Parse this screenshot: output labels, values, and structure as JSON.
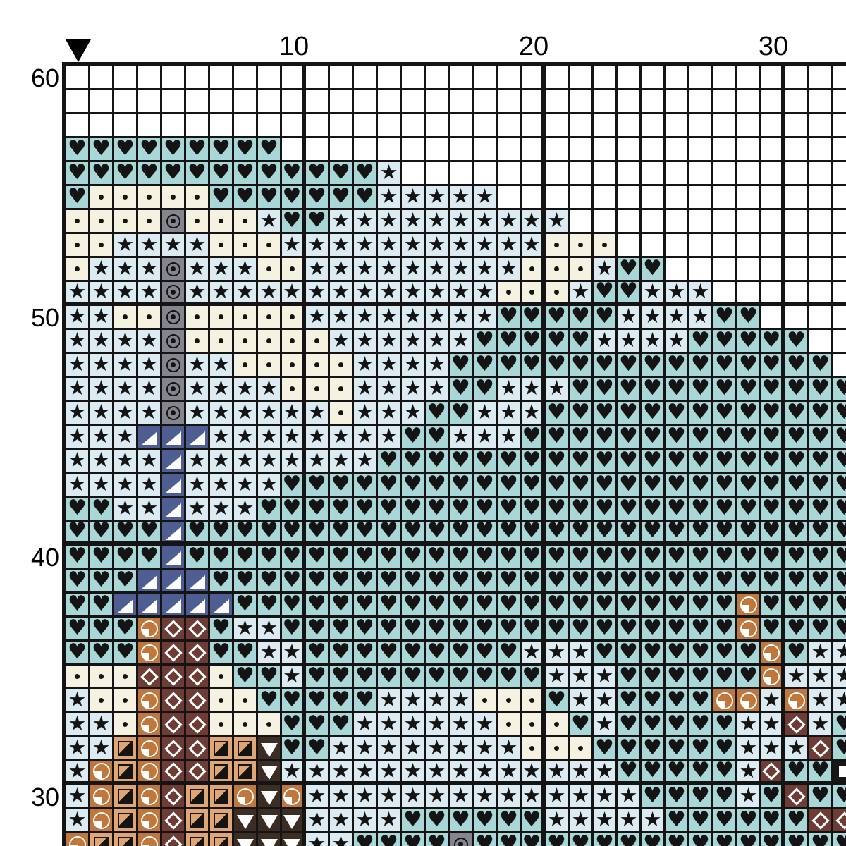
{
  "chart": {
    "type": "cross-stitch-pattern-grid",
    "marker": {
      "name": "center-marker",
      "shape": "down-triangle",
      "color": "#000000",
      "column": 1
    },
    "axis_top": [
      {
        "col": 10,
        "label": "10"
      },
      {
        "col": 20,
        "label": "20"
      },
      {
        "col": 30,
        "label": "30"
      }
    ],
    "axis_left": [
      {
        "row": 60,
        "label": "60"
      },
      {
        "row": 50,
        "label": "50"
      },
      {
        "row": 40,
        "label": "40"
      },
      {
        "row": 30,
        "label": "30"
      }
    ],
    "grid": {
      "start_row_number": 60,
      "visible_cols": 33,
      "visible_rows": 33,
      "bold_line_every": 10,
      "line_color": "#141414",
      "palette": {
        "w": {
          "name": "empty",
          "bg": "#ffffff",
          "symbol": "none"
        },
        "h": {
          "name": "teal-heart",
          "bg": "#a9d6d6",
          "symbol": "black-heart",
          "glyph": "♥"
        },
        "s": {
          "name": "pale-blue-star",
          "bg": "#dcebf1",
          "symbol": "black-star",
          "glyph": "★"
        },
        "d": {
          "name": "cream-dot",
          "bg": "#f6f2e1",
          "symbol": "black-dot"
        },
        "g": {
          "name": "gray-circled-dot",
          "bg": "#85858f",
          "symbol": "black-circled-dot"
        },
        "n": {
          "name": "navy-corner-triangle",
          "bg": "#4e5e92",
          "symbol": "white-corner-triangle"
        },
        "o": {
          "name": "orange-quarter-pie",
          "bg": "#c0773c",
          "symbol": "white-quarter-pie"
        },
        "b": {
          "name": "brown-diamond",
          "bg": "#6e3c35",
          "symbol": "white-diamond"
        },
        "t": {
          "name": "tan-half-square",
          "bg": "#dfa674",
          "symbol": "black-half-square"
        },
        "k": {
          "name": "darkbrown-down-triangle",
          "bg": "#3b2c24",
          "symbol": "white-down-triangle"
        },
        "q": {
          "name": "black-square",
          "bg": "#161616",
          "symbol": "white-square"
        }
      },
      "rows": [
        "wwwwwwwwwwwwwwwwwwwwwwwwwwwwwwwww",
        "wwwwwwwwwwwwwwwwwwwwwwwwwwwwwwwww",
        "wwwwwwwwwwwwwwwwwwwwwwwwwwwwwwwww",
        "hhhhhhhhhwwwwwwwwwwwwwwwwwwwwwwww",
        "hhhhhhhhhhhhhswwwwwwwwwwwwwwwwwww",
        "hdddddhhhhhhhssssswwwwwwwwwwwwwww",
        "ddddgdddshhsssssssssswwwwwwwwwwww",
        "ddssssdddsssssssssssdddwwwwwwwwww",
        "dsssgsssddsssssssssdddshhwwwwwwww",
        "ssssgsssssssssssssdddshhssswwwwww",
        "ssddgdddddsssssssshhhhhsssshhwwww",
        "ssssgddddddsssssshhhhhsssshhhhhww",
        "ssssgssdddddsssshhhhhhhhhhhhhhhhw",
        "ssssgssssdddsssshhssshhhhhhhhhhhh",
        "ssssgssssssdssshhssshhhhhhhhhhhhh",
        "sssnnnsssssssshhssshhhhhhhhhhhhhh",
        "ssssnsssssssshhhhhhhhhhhhhhhhhhhh",
        "ssssnsssshhhhhhhhhhhhhhhhhhhhhhhh",
        "hhssnssshhhhhhhhhhhhhhhhhhhhhhhhh",
        "hhhhnhhhhhhhhhhhhhhhhhhhhhhhhhhhh",
        "hhhhnhhhhhhhhhhhhhhhhhhhhhhhhhhhh",
        "hhhnnnhhhhhhhhhhhhhhhhhhhhhhhhhhh",
        "hhnnnnnhhhhhhhhhhhhhhhhhhhhhohhhh",
        "hhhobbhsshhhhhhhhhhhhhhhhhhhohhhh",
        "hhhobbhhsshhhhhhhhhssshhhhhhhohss",
        "dddbbbdhhshhhhhhhhhhssshhhhhhosss",
        "sddobbddhhhhhssssdddhsshhhhoososs",
        "ssdobbdddhhhssssssdddhshhhhhssbsh",
        "sstobbttkhhssssssssdddhhhhhhsssbh",
        "sotobbttksssssssssssssshhhhhsbhhq",
        "sotobttokosssssssssssssshhhhshbhh",
        "sotobttkkksssshhhhhhssssshhhhhhbb",
        "ottobttkkksshhhhghhhhhhhhhhhhhhhh"
      ]
    }
  }
}
